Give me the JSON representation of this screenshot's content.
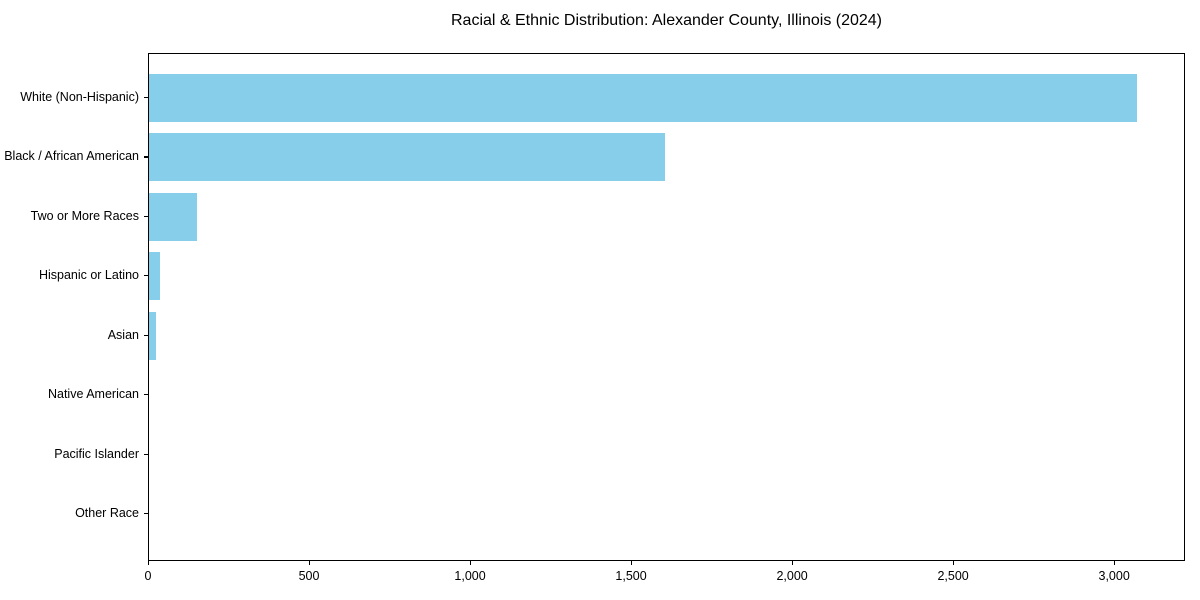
{
  "title": "Racial & Ethnic Distribution: Alexander County, Illinois (2024)",
  "chart_data": {
    "type": "bar",
    "orientation": "horizontal",
    "title": "Racial & Ethnic Distribution: Alexander County, Illinois (2024)",
    "xlabel": "",
    "ylabel": "",
    "categories": [
      "White (Non-Hispanic)",
      "Black / African American",
      "Two or More Races",
      "Hispanic or Latino",
      "Asian",
      "Native American",
      "Pacific Islander",
      "Other Race"
    ],
    "values": [
      3067,
      1602,
      150,
      33,
      23,
      0,
      0,
      0
    ],
    "bar_color": "#87CEEB",
    "xlim": [
      0,
      3220
    ],
    "x_ticks": [
      0,
      500,
      1000,
      1500,
      2000,
      2500,
      3000
    ],
    "x_tick_labels": [
      "0",
      "500",
      "1,000",
      "1,500",
      "2,000",
      "2,500",
      "3,000"
    ],
    "grid": false,
    "legend": null,
    "background_color": "#ffffff",
    "axis_color": "#000000"
  }
}
